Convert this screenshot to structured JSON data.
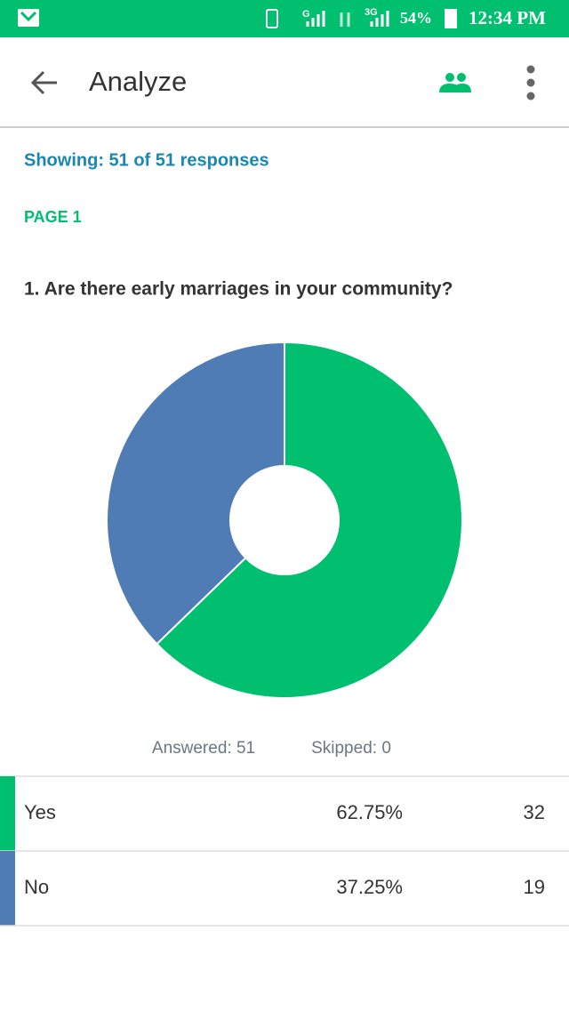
{
  "status_bar": {
    "network_1": "G",
    "network_2": "3G",
    "battery": "54%",
    "time": "12:34 PM"
  },
  "app_bar": {
    "title": "Analyze"
  },
  "summary": "Showing: 51 of 51 responses",
  "page_label": "PAGE 1",
  "chart_data": {
    "type": "pie",
    "title": "1. Are there early marriages in your community?",
    "categories": [
      "Yes",
      "No"
    ],
    "values": [
      62.75,
      37.25
    ],
    "value_labels": [
      "62.75%",
      "37.25%"
    ],
    "counts": [
      32,
      19
    ],
    "colors": [
      "#00bf6f",
      "#507cb6"
    ],
    "answered": "Answered: 51",
    "skipped": "Skipped: 0"
  }
}
